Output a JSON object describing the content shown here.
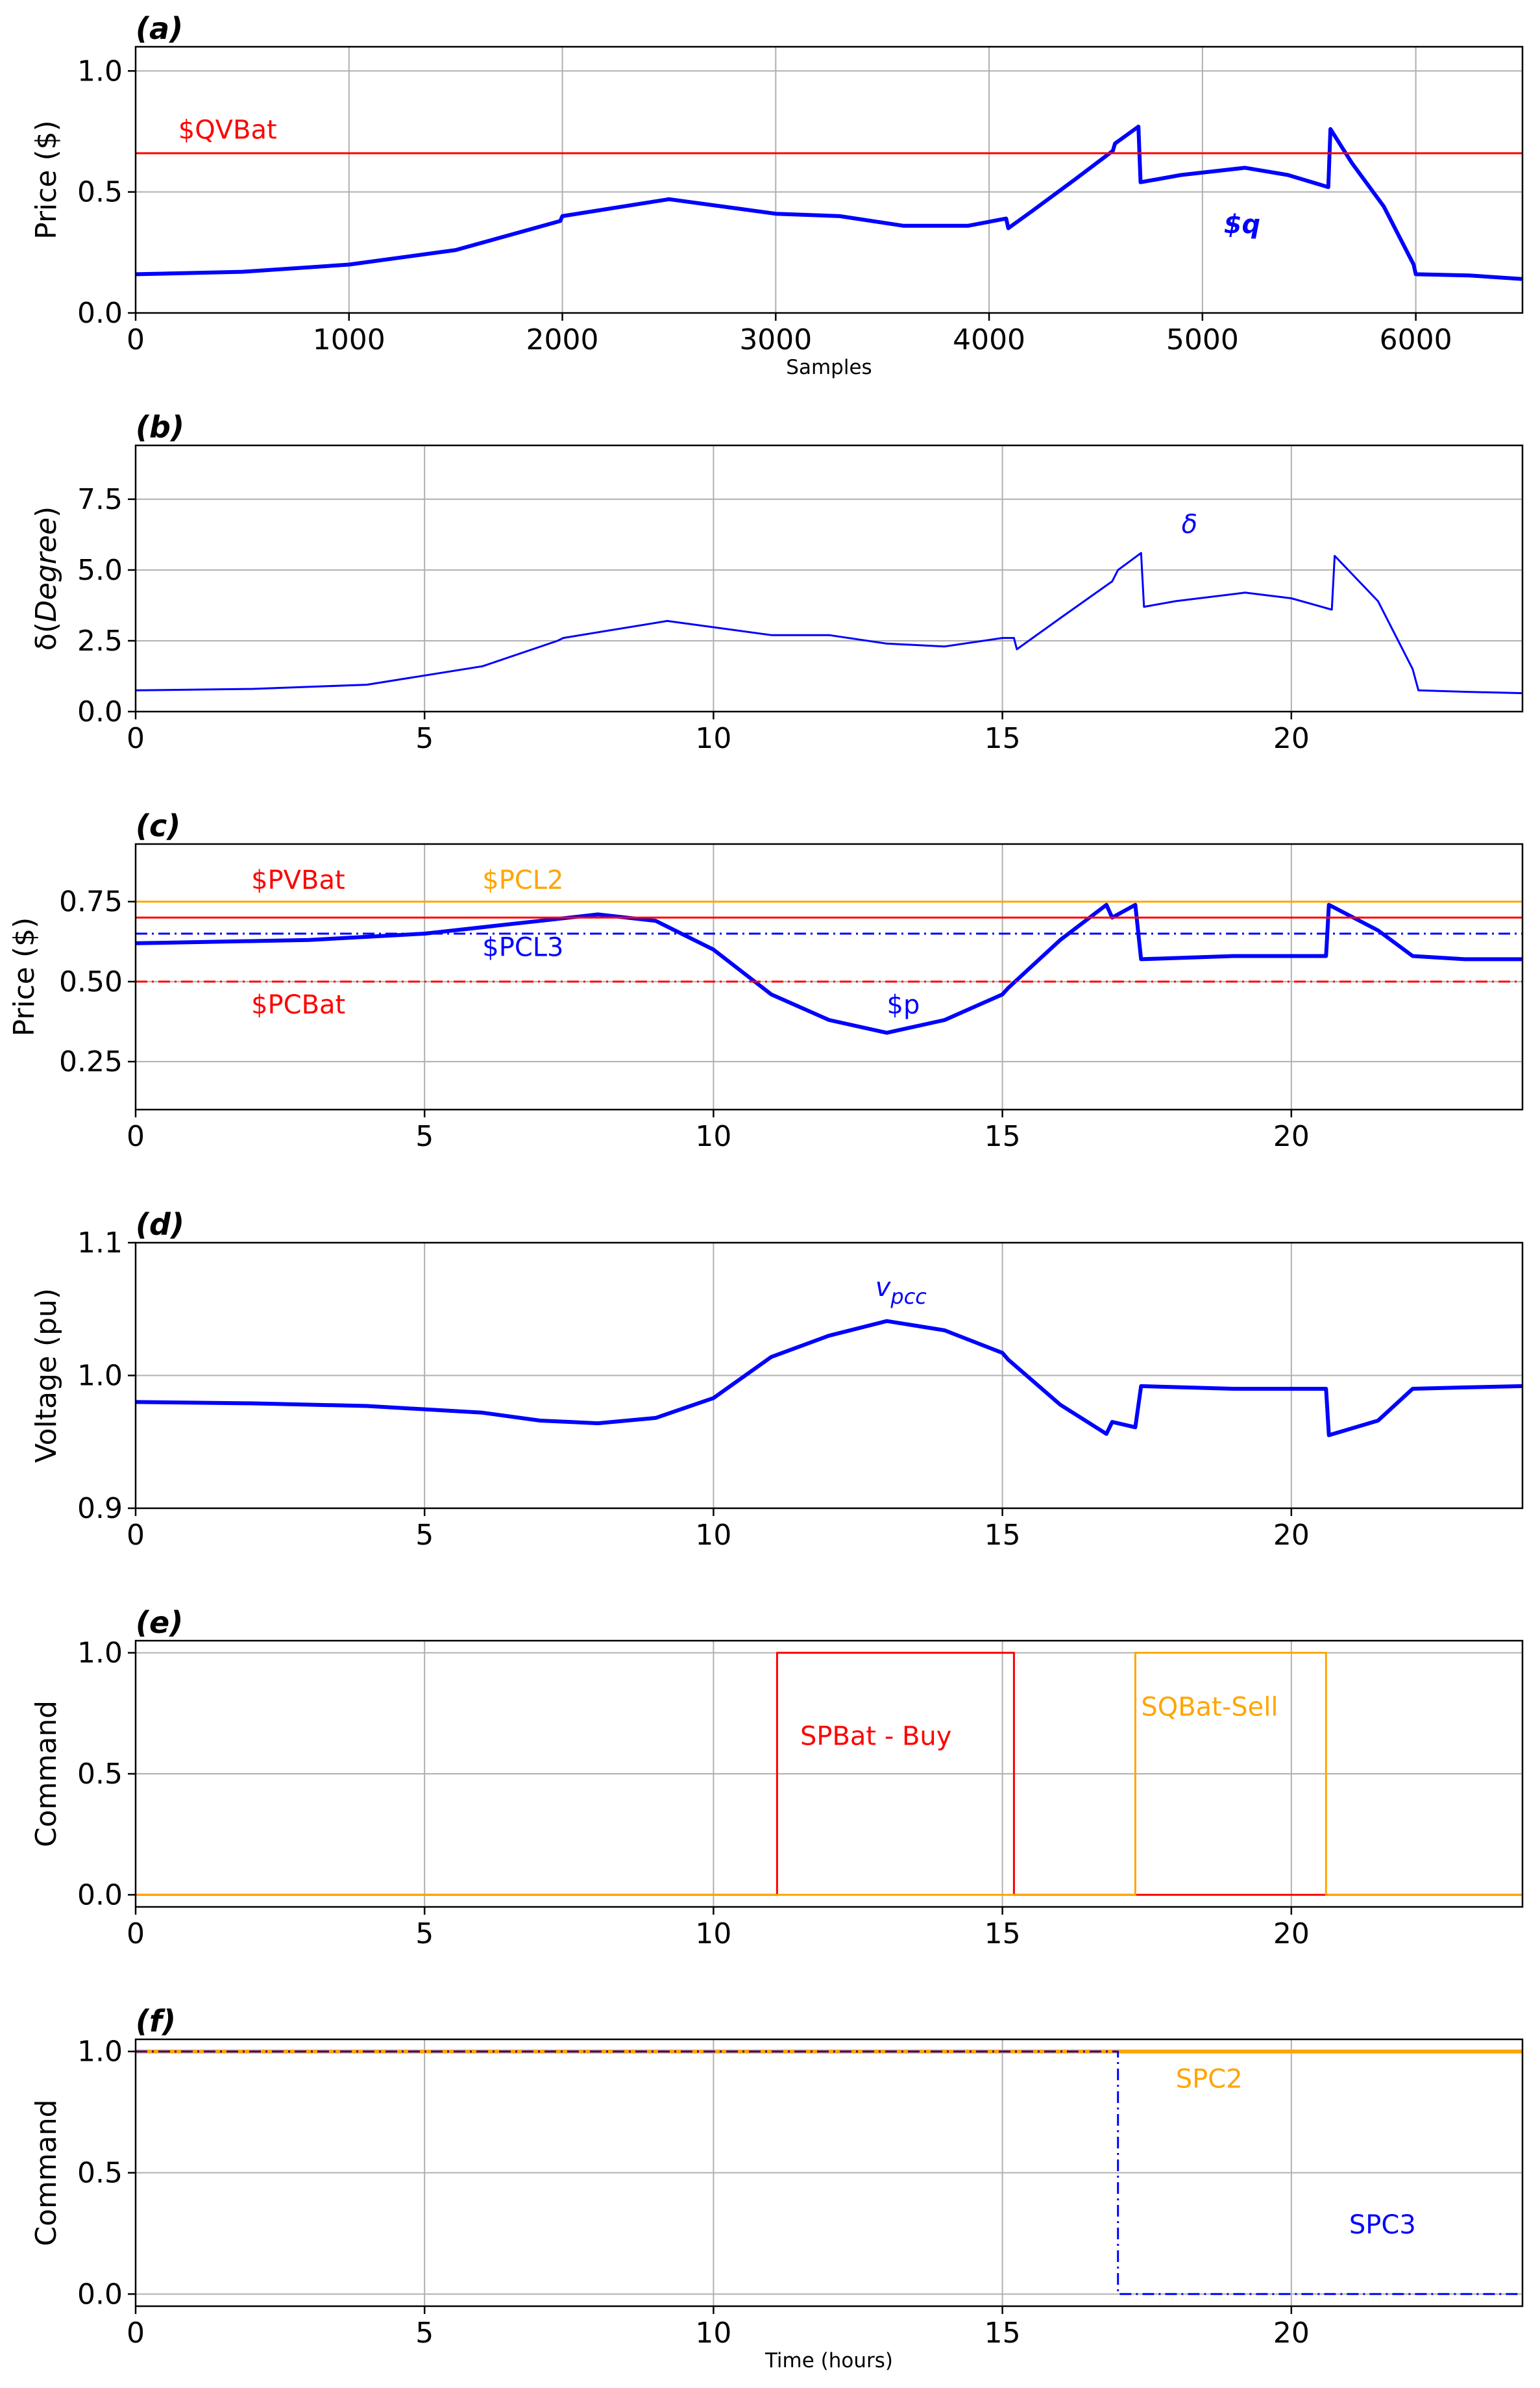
{
  "chart_data": [
    {
      "panel": "(a)",
      "type": "line",
      "xlabel": "Samples",
      "ylabel": "Price ($)",
      "xlim": [
        0,
        6500
      ],
      "ylim": [
        0,
        1.1
      ],
      "xticks": [
        0,
        1000,
        2000,
        3000,
        4000,
        5000,
        6000
      ],
      "yticks": [
        0.0,
        0.5,
        1.0
      ],
      "grid": true,
      "series": [
        {
          "name": "$q",
          "color": "#0000ff",
          "style": "solid",
          "width": "thick",
          "x": [
            0,
            500,
            1000,
            1500,
            1990,
            2000,
            2500,
            3000,
            3300,
            3600,
            3900,
            4080,
            4090,
            4200,
            4400,
            4580,
            4590,
            4700,
            4710,
            4900,
            5200,
            5400,
            5590,
            5600,
            5700,
            5850,
            5990,
            6000,
            6250,
            6500
          ],
          "y": [
            0.16,
            0.17,
            0.2,
            0.26,
            0.38,
            0.4,
            0.47,
            0.41,
            0.4,
            0.36,
            0.36,
            0.39,
            0.35,
            0.42,
            0.55,
            0.67,
            0.7,
            0.77,
            0.54,
            0.57,
            0.6,
            0.57,
            0.52,
            0.76,
            0.62,
            0.44,
            0.2,
            0.16,
            0.155,
            0.14
          ]
        },
        {
          "name": "$QVBat",
          "color": "#ff0000",
          "style": "solid",
          "width": "thin",
          "x": [
            0,
            6500
          ],
          "y": [
            0.66,
            0.66
          ]
        }
      ],
      "annotations": [
        {
          "text": "$QVBat",
          "x": 200,
          "y": 0.72,
          "color": "#ff0000"
        },
        {
          "text": "$q",
          "x": 5100,
          "y": 0.33,
          "color": "#0000ff",
          "bold": true
        }
      ]
    },
    {
      "panel": "(b)",
      "type": "line",
      "xlabel": "",
      "ylabel": "δ(Degree)",
      "xlim": [
        0,
        24
      ],
      "ylim": [
        0,
        9.4
      ],
      "xticks": [
        0,
        5,
        10,
        15,
        20
      ],
      "yticks": [
        0.0,
        2.5,
        5.0,
        7.5
      ],
      "grid": true,
      "series": [
        {
          "name": "δ",
          "color": "#0000ff",
          "style": "solid",
          "width": "thin",
          "x": [
            0,
            2,
            4,
            6,
            7.3,
            7.4,
            9.2,
            11,
            12,
            13,
            14,
            15,
            15.2,
            15.25,
            16,
            16.9,
            17.0,
            17.4,
            17.45,
            18,
            19.2,
            20,
            20.7,
            20.75,
            21.5,
            22.1,
            22.2,
            23,
            24
          ],
          "y": [
            0.75,
            0.8,
            0.95,
            1.6,
            2.5,
            2.6,
            3.2,
            2.7,
            2.7,
            2.4,
            2.3,
            2.6,
            2.6,
            2.2,
            3.3,
            4.6,
            5.0,
            5.6,
            3.7,
            3.9,
            4.2,
            4.0,
            3.6,
            5.5,
            3.9,
            1.5,
            0.75,
            0.7,
            0.65
          ]
        }
      ],
      "annotations": [
        {
          "text": "δ",
          "x": 18.1,
          "y": 6.3,
          "color": "#0000ff"
        }
      ]
    },
    {
      "panel": "(c)",
      "type": "line",
      "xlabel": "",
      "ylabel": "Price ($)",
      "xlim": [
        0,
        24
      ],
      "ylim": [
        0.1,
        0.93
      ],
      "xticks": [
        0,
        5,
        10,
        15,
        20
      ],
      "yticks": [
        0.25,
        0.5,
        0.75
      ],
      "grid": true,
      "series": [
        {
          "name": "$p",
          "color": "#0000ff",
          "style": "solid",
          "width": "thick",
          "x": [
            0,
            3,
            5,
            6,
            7,
            8,
            9,
            10,
            11,
            12,
            13,
            14,
            15,
            15.1,
            16,
            16.8,
            16.9,
            17.3,
            17.4,
            19,
            20.6,
            20.65,
            21.5,
            22.1,
            23,
            24
          ],
          "y": [
            0.62,
            0.63,
            0.65,
            0.67,
            0.69,
            0.71,
            0.69,
            0.6,
            0.46,
            0.38,
            0.34,
            0.38,
            0.46,
            0.48,
            0.63,
            0.74,
            0.7,
            0.74,
            0.57,
            0.58,
            0.58,
            0.74,
            0.66,
            0.58,
            0.57,
            0.57
          ]
        },
        {
          "name": "$PCL2",
          "color": "#ffa500",
          "style": "solid",
          "width": "thin",
          "x": [
            0,
            24
          ],
          "y": [
            0.75,
            0.75
          ]
        },
        {
          "name": "$PVBat",
          "color": "#ff0000",
          "style": "solid",
          "width": "thin",
          "x": [
            0,
            24
          ],
          "y": [
            0.7,
            0.7
          ]
        },
        {
          "name": "$PCL3",
          "color": "#0000ff",
          "style": "dashdot",
          "width": "thin",
          "x": [
            0,
            24
          ],
          "y": [
            0.65,
            0.65
          ]
        },
        {
          "name": "$PCBat",
          "color": "#ff0000",
          "style": "dashdot",
          "width": "thin",
          "x": [
            0,
            24
          ],
          "y": [
            0.5,
            0.5
          ]
        }
      ],
      "annotations": [
        {
          "text": "$PVBat",
          "x": 2.0,
          "y": 0.79,
          "color": "#ff0000"
        },
        {
          "text": "$PCL2",
          "x": 6.0,
          "y": 0.79,
          "color": "#ffa500"
        },
        {
          "text": "$PCL3",
          "x": 6.0,
          "y": 0.58,
          "color": "#0000ff"
        },
        {
          "text": "$PCBat",
          "x": 2.0,
          "y": 0.4,
          "color": "#ff0000"
        },
        {
          "text": "$p",
          "x": 13.0,
          "y": 0.4,
          "color": "#0000ff"
        }
      ]
    },
    {
      "panel": "(d)",
      "type": "line",
      "xlabel": "",
      "ylabel": "Voltage (pu)",
      "xlim": [
        0,
        24
      ],
      "ylim": [
        0.9,
        1.1
      ],
      "xticks": [
        0,
        5,
        10,
        15,
        20
      ],
      "yticks": [
        0.9,
        1.0,
        1.1
      ],
      "grid": true,
      "series": [
        {
          "name": "v_pcc",
          "color": "#0000ff",
          "style": "solid",
          "width": "thick",
          "x": [
            0,
            2,
            4,
            6,
            7,
            8,
            9,
            10,
            11,
            12,
            13,
            14,
            15,
            15.1,
            16,
            16.8,
            16.9,
            17.3,
            17.4,
            19,
            20.6,
            20.65,
            21.5,
            22.1,
            23,
            24
          ],
          "y": [
            0.98,
            0.979,
            0.977,
            0.972,
            0.966,
            0.964,
            0.968,
            0.983,
            1.014,
            1.03,
            1.041,
            1.034,
            1.017,
            1.012,
            0.978,
            0.956,
            0.965,
            0.961,
            0.992,
            0.99,
            0.99,
            0.955,
            0.966,
            0.99,
            0.991,
            0.992
          ]
        }
      ],
      "annotations": [
        {
          "text": "v",
          "sub": "pcc",
          "x": 12.8,
          "y": 1.06,
          "color": "#0000ff"
        }
      ]
    },
    {
      "panel": "(e)",
      "type": "line",
      "xlabel": "",
      "ylabel": "Command",
      "xlim": [
        0,
        24
      ],
      "ylim": [
        -0.05,
        1.05
      ],
      "xticks": [
        0,
        5,
        10,
        15,
        20
      ],
      "yticks": [
        0.0,
        0.5,
        1.0
      ],
      "grid": true,
      "series": [
        {
          "name": "SPBat - Buy",
          "color": "#ff0000",
          "style": "solid",
          "width": "thin",
          "x": [
            0,
            11.1,
            11.1,
            15.2,
            15.2,
            24
          ],
          "y": [
            0,
            0,
            1,
            1,
            0,
            0
          ]
        },
        {
          "name": "SQBat-Sell",
          "color": "#ffa500",
          "style": "solid",
          "width": "thin",
          "x": [
            0,
            17.3,
            17.3,
            20.6,
            20.6,
            24
          ],
          "y": [
            0,
            0,
            1,
            1,
            0,
            0
          ]
        }
      ],
      "annotations": [
        {
          "text": "SPBat - Buy",
          "x": 11.5,
          "y": 0.62,
          "color": "#ff0000"
        },
        {
          "text": "SQBat-Sell",
          "x": 17.4,
          "y": 0.74,
          "color": "#ffa500"
        }
      ]
    },
    {
      "panel": "(f)",
      "type": "line",
      "xlabel": "Time (hours)",
      "ylabel": "Command",
      "xlim": [
        0,
        24
      ],
      "ylim": [
        -0.05,
        1.05
      ],
      "xticks": [
        0,
        5,
        10,
        15,
        20
      ],
      "yticks": [
        0.0,
        0.5,
        1.0
      ],
      "grid": true,
      "series": [
        {
          "name": "SPC2",
          "color": "#ffa500",
          "style": "solid",
          "width": "thick",
          "x": [
            0,
            24
          ],
          "y": [
            1,
            1
          ]
        },
        {
          "name": "SPC3",
          "color": "#0000ff",
          "style": "dashdot",
          "width": "thin",
          "x": [
            0,
            17.0,
            17.0,
            24
          ],
          "y": [
            1,
            1,
            0,
            0
          ]
        }
      ],
      "annotations": [
        {
          "text": "SPC2",
          "x": 18.0,
          "y": 0.85,
          "color": "#ffa500"
        },
        {
          "text": "SPC3",
          "x": 21.0,
          "y": 0.25,
          "color": "#0000ff"
        }
      ]
    }
  ]
}
